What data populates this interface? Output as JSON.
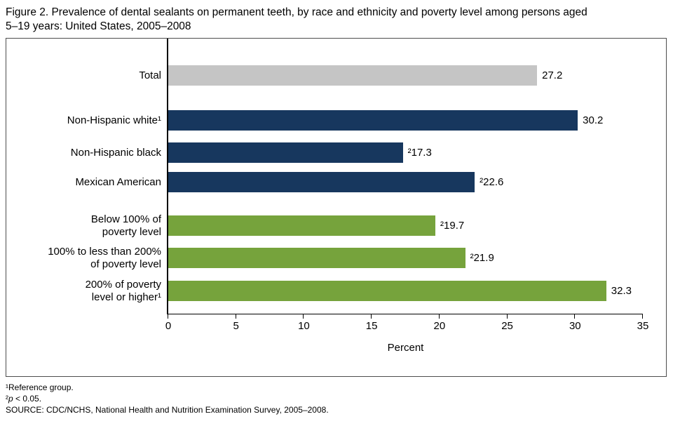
{
  "title": {
    "line1": "Figure 2. Prevalence of dental sealants on permanent teeth, by race and ethnicity and poverty level among persons aged",
    "line2": "5–19 years: United States, 2005–2008"
  },
  "chart_data": {
    "type": "bar",
    "orientation": "horizontal",
    "title": "Prevalence of dental sealants on permanent teeth, by race and ethnicity and poverty level among persons aged 5–19 years: United States, 2005–2008",
    "xlabel": "Percent",
    "xlim": [
      0,
      35
    ],
    "xticks": [
      0,
      5,
      10,
      15,
      20,
      25,
      30,
      35
    ],
    "grid": false,
    "legend": "none",
    "colors": {
      "gray": "#c5c5c5",
      "navy": "#17375e",
      "green": "#76a33c"
    },
    "rows": [
      {
        "label_lines": [
          "Total"
        ],
        "value": 27.2,
        "value_label": "27.2",
        "color": "gray"
      },
      {
        "label_lines": [
          "Non-Hispanic white¹"
        ],
        "value": 30.2,
        "value_label": "30.2",
        "color": "navy"
      },
      {
        "label_lines": [
          "Non-Hispanic black"
        ],
        "value": 17.3,
        "value_label": "²17.3",
        "color": "navy"
      },
      {
        "label_lines": [
          "Mexican American"
        ],
        "value": 22.6,
        "value_label": "²22.6",
        "color": "navy"
      },
      {
        "label_lines": [
          "Below 100% of",
          "poverty level"
        ],
        "value": 19.7,
        "value_label": "²19.7",
        "color": "green"
      },
      {
        "label_lines": [
          "100% to less than 200%",
          "of poverty level"
        ],
        "value": 21.9,
        "value_label": "²21.9",
        "color": "green"
      },
      {
        "label_lines": [
          "200% of poverty",
          "level or higher¹"
        ],
        "value": 32.3,
        "value_label": "32.3",
        "color": "green"
      }
    ]
  },
  "footnotes": {
    "note1": "¹Reference group.",
    "note2_sup": "²",
    "note2_p": "p",
    "note2_rest": " < 0.05.",
    "source": "SOURCE: CDC/NCHS, National Health and Nutrition Examination Survey, 2005–2008."
  }
}
